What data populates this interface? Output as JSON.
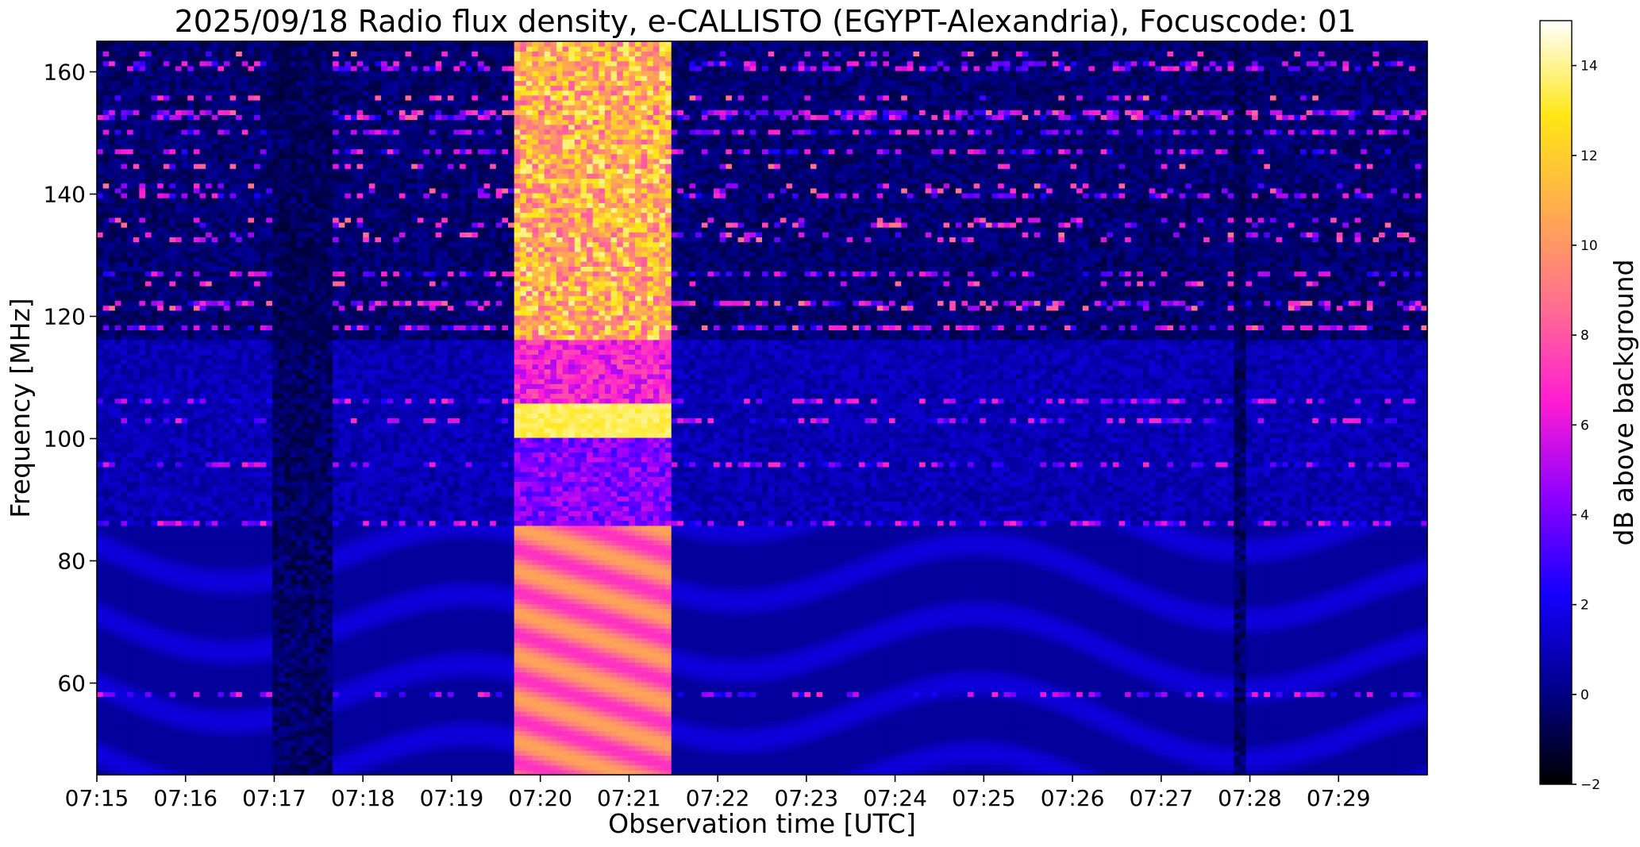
{
  "chart_data": {
    "type": "heatmap",
    "title": "2025/09/18  Radio flux density, e-CALLISTO (EGYPT-Alexandria), Focuscode: 01",
    "xlabel": "Observation time [UTC]",
    "ylabel": "Frequency [MHz]",
    "x_range_minutes": [
      0,
      15
    ],
    "x_ticks": [
      {
        "minute": 0,
        "label": "07:15"
      },
      {
        "minute": 1,
        "label": "07:16"
      },
      {
        "minute": 2,
        "label": "07:17"
      },
      {
        "minute": 3,
        "label": "07:18"
      },
      {
        "minute": 4,
        "label": "07:19"
      },
      {
        "minute": 5,
        "label": "07:20"
      },
      {
        "minute": 6,
        "label": "07:21"
      },
      {
        "minute": 7,
        "label": "07:22"
      },
      {
        "minute": 8,
        "label": "07:23"
      },
      {
        "minute": 9,
        "label": "07:24"
      },
      {
        "minute": 10,
        "label": "07:25"
      },
      {
        "minute": 11,
        "label": "07:26"
      },
      {
        "minute": 12,
        "label": "07:27"
      },
      {
        "minute": 13,
        "label": "07:28"
      },
      {
        "minute": 14,
        "label": "07:29"
      }
    ],
    "ylim": [
      45,
      165
    ],
    "y_ticks": [
      60,
      80,
      100,
      120,
      140,
      160
    ],
    "colorbar": {
      "label": "dB above background",
      "range": [
        -2,
        15
      ],
      "ticks": [
        -2,
        0,
        2,
        4,
        6,
        8,
        10,
        12,
        14
      ],
      "colormap": "gnuplot2",
      "colors": [
        "#000000",
        "#00008c",
        "#1400ff",
        "#8c00ff",
        "#ff1cd3",
        "#ff6e91",
        "#ffab4f",
        "#ffe614",
        "#ffffff"
      ]
    },
    "burst": {
      "start_minute": 4.7,
      "end_minute": 6.5,
      "freq_range": [
        45,
        165
      ],
      "peak_db": 14
    },
    "dropouts": [
      {
        "start_minute": 2.0,
        "end_minute": 2.65
      },
      {
        "start_minute": 12.8,
        "end_minute": 12.95
      }
    ],
    "rfi_bands_mhz": [
      58,
      86,
      96,
      103,
      106,
      118,
      122,
      127,
      140,
      147,
      150,
      153,
      161
    ],
    "grid": false
  }
}
